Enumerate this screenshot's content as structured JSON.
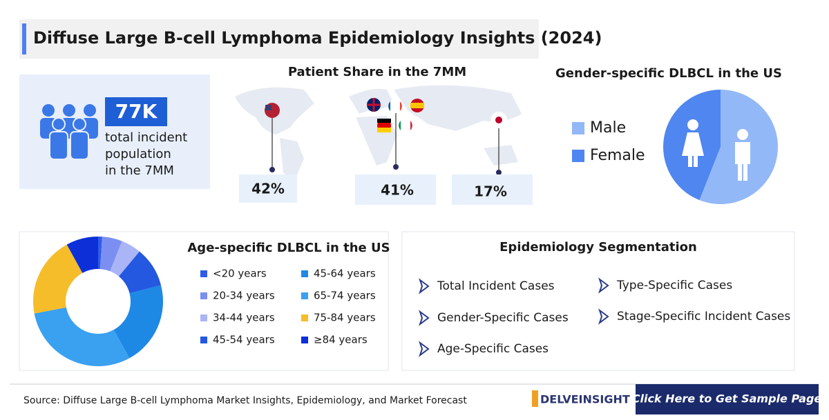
{
  "header": {
    "title": "Diffuse Large B-cell Lymphoma Epidemiology Insights (2024)"
  },
  "stat": {
    "value": "77K",
    "lines": [
      "total incident",
      "population",
      "in the 7MM"
    ]
  },
  "map": {
    "title": "Patient Share in the 7MM",
    "shares": [
      "42%",
      "41%",
      "17%"
    ]
  },
  "chart_data": [
    {
      "type": "pie",
      "title": "Gender-specific DLBCL in the US",
      "categories": [
        "Male",
        "Female"
      ],
      "values": [
        56,
        44
      ],
      "colors": [
        "#93b8f7",
        "#4f86ef"
      ]
    },
    {
      "type": "donut",
      "title": "Age-specific DLBCL in the US",
      "categories": [
        "<20 years",
        "20-34 years",
        "34-44 years",
        "45-54 years",
        "45-64 years",
        "65-74 years",
        "75-84 years",
        "≥84 years"
      ],
      "values": [
        1,
        5,
        5,
        10,
        21,
        30,
        20,
        8
      ],
      "colors": [
        "#2f5be8",
        "#7b8ff2",
        "#a9b5f6",
        "#2458e0",
        "#1e88e5",
        "#3aa0f0",
        "#f5bd2a",
        "#0d2fd8"
      ]
    }
  ],
  "segmentation": {
    "title": "Epidemiology Segmentation",
    "items": [
      "Total Incident Cases",
      "Gender-Specific Cases",
      "Age-Specific Cases",
      "Type-Specific Cases",
      "Stage-Specific Incident Cases"
    ]
  },
  "footer": {
    "source": "Source: Diffuse Large B-cell Lymphoma Market Insights, Epidemiology, and Market Forecast",
    "logo": "DELVEINSIGHT",
    "button": "Click Here to Get Sample Page"
  }
}
